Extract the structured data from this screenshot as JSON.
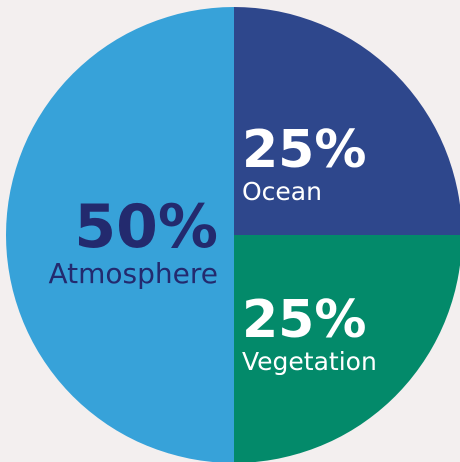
{
  "chart_data": {
    "type": "pie",
    "title": "",
    "slices": [
      {
        "label": "Ocean",
        "value": 25,
        "value_label": "25%",
        "color": "#2e478c",
        "text_color": "#ffffff"
      },
      {
        "label": "Vegetation",
        "value": 25,
        "value_label": "25%",
        "color": "#038a6a",
        "text_color": "#ffffff"
      },
      {
        "label": "Atmosphere",
        "value": 50,
        "value_label": "50%",
        "color": "#37a2d9",
        "text_color": "#232a6e"
      }
    ],
    "start_angle": "12 o'clock",
    "direction": "clockwise",
    "legend": "none",
    "background_color": "#f3efef"
  }
}
